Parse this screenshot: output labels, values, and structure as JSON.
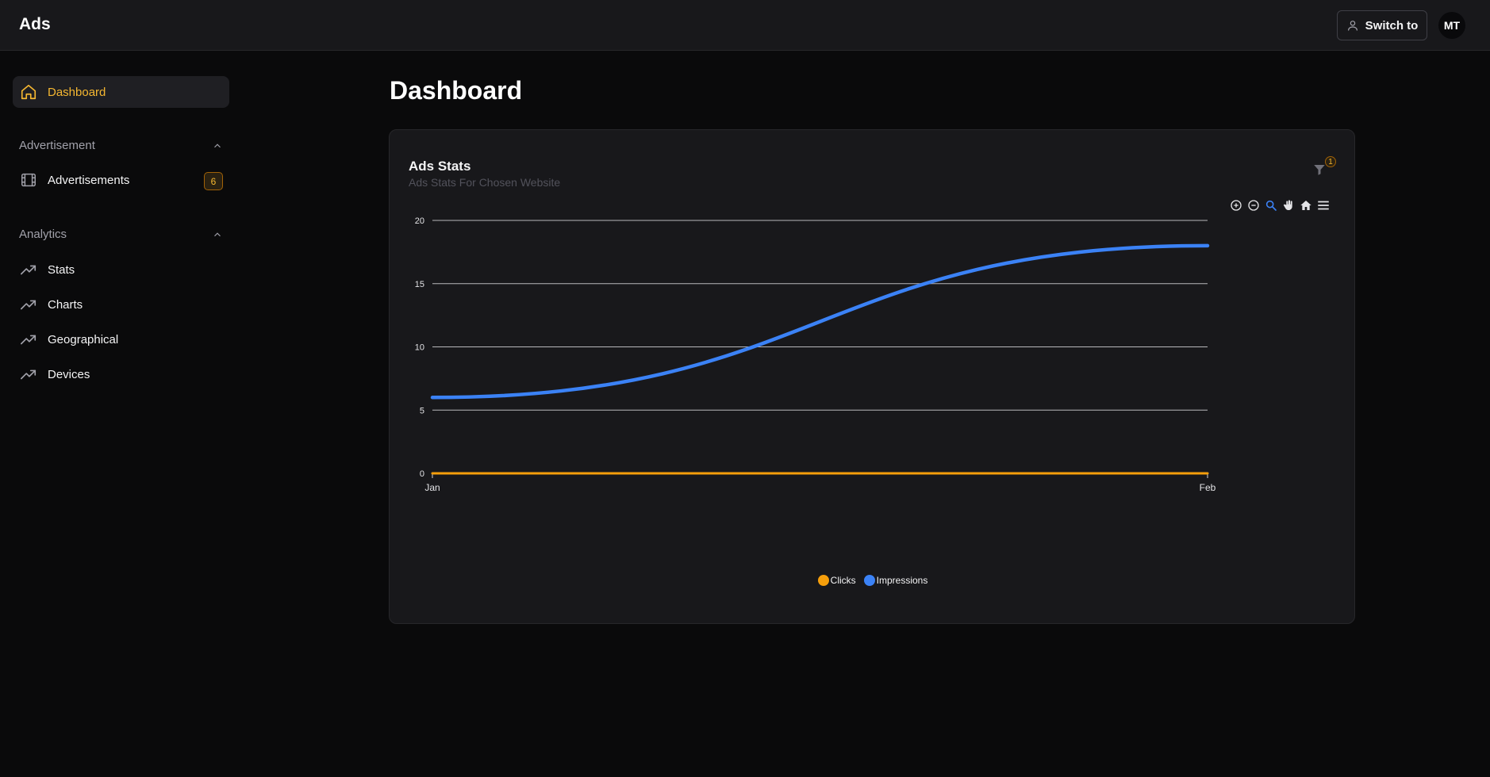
{
  "header": {
    "app_title": "Ads",
    "switch_label": "Switch to",
    "avatar_initials": "MT"
  },
  "sidebar": {
    "dashboard": {
      "label": "Dashboard",
      "icon": "home-icon"
    },
    "advertisement_section": {
      "title": "Advertisement"
    },
    "advertisements": {
      "label": "Advertisements",
      "icon": "film-icon",
      "badge": "6"
    },
    "analytics_section": {
      "title": "Analytics"
    },
    "analytics_items": [
      {
        "label": "Stats",
        "icon": "trending-up-icon"
      },
      {
        "label": "Charts",
        "icon": "trending-up-icon"
      },
      {
        "label": "Geographical",
        "icon": "trending-up-icon"
      },
      {
        "label": "Devices",
        "icon": "trending-up-icon"
      }
    ]
  },
  "main": {
    "page_title": "Dashboard",
    "card": {
      "title": "Ads Stats",
      "subtitle": "Ads Stats For Chosen Website",
      "filter_badge": "1"
    }
  },
  "colors": {
    "accent": "#f5b731",
    "clicks": "#f59e0b",
    "impressions": "#3b82f6"
  },
  "chart_data": {
    "type": "line",
    "x": [
      "Jan",
      "Feb"
    ],
    "series": [
      {
        "name": "Clicks",
        "values": [
          0,
          0
        ]
      },
      {
        "name": "Impressions",
        "values": [
          6,
          18
        ]
      }
    ],
    "yticks": [
      "0",
      "5",
      "10",
      "15",
      "20"
    ],
    "ylim": [
      0,
      20
    ],
    "grid": true,
    "legend": "bottom-center",
    "curve": "smooth"
  }
}
